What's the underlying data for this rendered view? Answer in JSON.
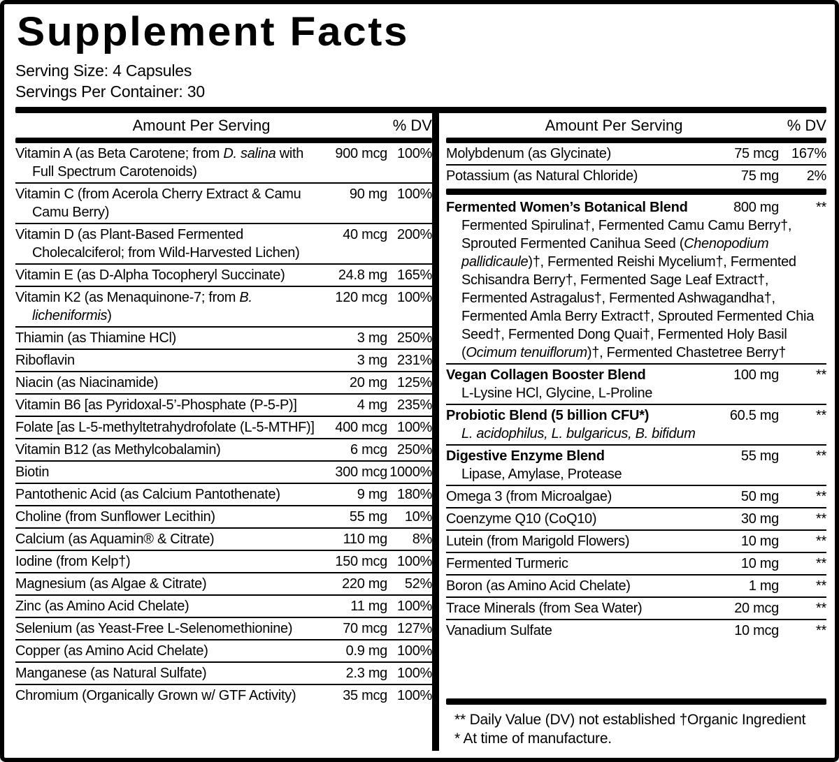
{
  "colors": {
    "text": "#000000",
    "background": "#ffffff"
  },
  "title": "Supplement Facts",
  "serving": {
    "size": "Serving Size: 4 Capsules",
    "per_container": "Servings Per Container: 30"
  },
  "columns": {
    "amount_header": "Amount Per Serving",
    "dv_header": "% DV"
  },
  "left_rows": [
    {
      "name": "Vitamin A (as Beta Carotene; from *D. salina* with Full Spectrum Carotenoids)",
      "amount": "900 mcg",
      "dv": "100%"
    },
    {
      "name": "Vitamin C (from Acerola Cherry Extract & Camu Camu Berry)",
      "amount": "90 mg",
      "dv": "100%"
    },
    {
      "name": "Vitamin D (as Plant-Based Fermented Cholecalciferol; from Wild-Harvested Lichen)",
      "amount": "40 mcg",
      "dv": "200%"
    },
    {
      "name": "Vitamin E (as D-Alpha Tocopheryl Succinate)",
      "amount": "24.8 mg",
      "dv": "165%"
    },
    {
      "name": "Vitamin K2 (as Menaquinone-7; from *B. licheniformis*)",
      "amount": "120 mcg",
      "dv": "100%"
    },
    {
      "name": "Thiamin (as Thiamine HCl)",
      "amount": "3 mg",
      "dv": "250%"
    },
    {
      "name": "Riboflavin",
      "amount": "3 mg",
      "dv": "231%"
    },
    {
      "name": "Niacin (as Niacinamide)",
      "amount": "20 mg",
      "dv": "125%"
    },
    {
      "name": "Vitamin B6 [as Pyridoxal-5’-Phosphate (P-5-P)]",
      "amount": "4 mg",
      "dv": "235%"
    },
    {
      "name": "Folate [as L-5-methyltetrahydrofolate (L-5-MTHF)]",
      "amount": "400 mcg",
      "dv": "100%"
    },
    {
      "name": "Vitamin B12 (as Methylcobalamin)",
      "amount": "6 mcg",
      "dv": "250%"
    },
    {
      "name": "Biotin",
      "amount": "300 mcg",
      "dv": "1000%"
    },
    {
      "name": "Pantothenic Acid (as Calcium Pantothenate)",
      "amount": "9 mg",
      "dv": "180%"
    },
    {
      "name": "Choline (from Sunflower Lecithin)",
      "amount": "55 mg",
      "dv": "10%"
    },
    {
      "name": "Calcium (as Aquamin® & Citrate)",
      "amount": "110 mg",
      "dv": "8%"
    },
    {
      "name": "Iodine (from Kelp†)",
      "amount": "150 mcg",
      "dv": "100%"
    },
    {
      "name": "Magnesium (as Algae & Citrate)",
      "amount": "220 mg",
      "dv": "52%"
    },
    {
      "name": "Zinc (as Amino Acid Chelate)",
      "amount": "11 mg",
      "dv": "100%"
    },
    {
      "name": "Selenium (as Yeast-Free L-Selenomethionine)",
      "amount": "70 mcg",
      "dv": "127%"
    },
    {
      "name": "Copper (as Amino Acid Chelate)",
      "amount": "0.9 mg",
      "dv": "100%"
    },
    {
      "name": "Manganese (as Natural Sulfate)",
      "amount": "2.3 mg",
      "dv": "100%"
    },
    {
      "name": "Chromium (Organically Grown w/ GTF Activity)",
      "amount": "35 mcg",
      "dv": "100%"
    }
  ],
  "right": {
    "minerals": [
      {
        "name": "Molybdenum (as Glycinate)",
        "amount": "75 mcg",
        "dv": "167%"
      },
      {
        "name": "Potassium (as Natural Chloride)",
        "amount": "75 mg",
        "dv": "2%"
      }
    ],
    "blends": [
      {
        "name": "Fermented Women’s Botanical Blend",
        "amount": "800 mg",
        "dv": "**",
        "sub": "Fermented Spirulina†, Fermented Camu Camu Berry†, Sprouted Fermented Canihua Seed (*Chenopodium pallidicaule*)†, Fermented Reishi Mycelium†, Fermented Schisandra Berry†, Fermented Sage Leaf Extract†, Fermented Astragalus†, Fermented Ashwagandha†, Fermented Amla Berry Extract†, Sprouted Fermented Chia Seed†, Fermented Dong Quai†, Fermented Holy Basil (*Ocimum tenuiflorum*)†, Fermented Chastetree Berry†"
      },
      {
        "name": "Vegan Collagen Booster Blend",
        "amount": "100 mg",
        "dv": "**",
        "sub": "L-Lysine HCl, Glycine, L-Proline"
      },
      {
        "name": "Probiotic Blend (5 billion CFU*)",
        "amount": "60.5 mg",
        "dv": "**",
        "sub": "*L. acidophilus, L. bulgaricus, B. bifidum*"
      },
      {
        "name": "Digestive Enzyme Blend",
        "amount": "55 mg",
        "dv": "**",
        "sub": "Lipase, Amylase, Protease"
      }
    ],
    "others": [
      {
        "name": "Omega 3 (from Microalgae)",
        "amount": "50 mg",
        "dv": "**"
      },
      {
        "name": "Coenzyme Q10 (CoQ10)",
        "amount": "30 mg",
        "dv": "**"
      },
      {
        "name": "Lutein (from Marigold Flowers)",
        "amount": "10 mg",
        "dv": "**"
      },
      {
        "name": "Fermented Turmeric",
        "amount": "10 mg",
        "dv": "**"
      },
      {
        "name": "Boron (as Amino Acid Chelate)",
        "amount": "1 mg",
        "dv": "**"
      },
      {
        "name": "Trace Minerals (from Sea Water)",
        "amount": "20 mcg",
        "dv": "**"
      },
      {
        "name": "Vanadium Sulfate",
        "amount": "10 mcg",
        "dv": "**"
      }
    ],
    "footnotes": [
      "** Daily Value (DV) not established †Organic Ingredient",
      "* At time of manufacture."
    ]
  }
}
